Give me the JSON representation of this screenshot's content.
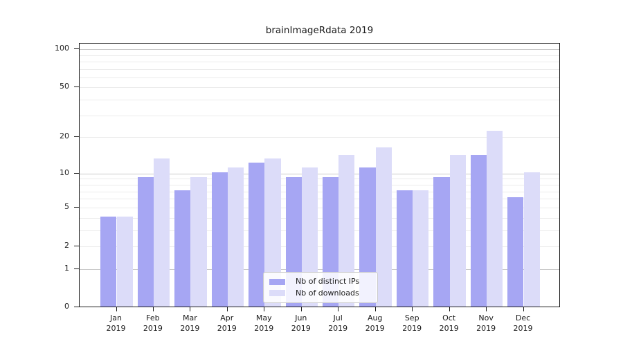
{
  "title": "brainImageRdata 2019",
  "chart_data": {
    "type": "bar",
    "categories": [
      "Jan",
      "Feb",
      "Mar",
      "Apr",
      "May",
      "Jun",
      "Jul",
      "Aug",
      "Sep",
      "Oct",
      "Nov",
      "Dec"
    ],
    "category_year": "2019",
    "series": [
      {
        "name": "Nb of distinct IPs",
        "color": "#a6a6f3",
        "values": [
          4,
          9,
          7,
          10,
          12,
          9,
          9,
          11,
          7,
          9,
          14,
          6
        ]
      },
      {
        "name": "Nb of downloads",
        "color": "#dcdcf9",
        "values": [
          4,
          13,
          9,
          11,
          13,
          11,
          14,
          16,
          7,
          14,
          22,
          10
        ]
      }
    ],
    "yscale": "log1p",
    "ylim": [
      0,
      110.5
    ],
    "y_tick_labels": [
      0,
      1,
      2,
      5,
      10,
      20,
      50,
      100
    ],
    "y_gridlines_major": [
      1,
      10,
      100
    ],
    "y_gridlines_minor": [
      2,
      3,
      4,
      5,
      6,
      7,
      8,
      9,
      20,
      30,
      40,
      50,
      60,
      70,
      80,
      90
    ],
    "grid": "on",
    "legend_position": "lower center"
  },
  "colors": {
    "background": "#ffffff",
    "spine": "#1a1a1a",
    "grid_major": "#c8c8c8",
    "grid_minor": "#ebebeb",
    "text": "#1a1a1a",
    "legend_border": "#cccccc"
  }
}
